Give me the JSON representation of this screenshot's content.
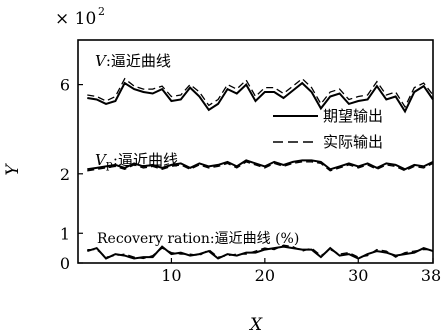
{
  "chart_data": {
    "type": "line",
    "scale_label": "× 10",
    "scale_exponent": "2",
    "xlabel": "X",
    "ylabel": "Y",
    "xlim": [
      0,
      38
    ],
    "ylim": [
      0,
      7.5
    ],
    "x_ticks": [
      10,
      20,
      30,
      38
    ],
    "y_ticks": [
      0,
      1,
      2,
      6
    ],
    "y_tick_labels": [
      "0",
      "1",
      "2",
      "6"
    ],
    "y_tick_positions": [
      0,
      1,
      3,
      6
    ],
    "legend": {
      "solid_label": "期望输出",
      "dashed_label": "实际输出",
      "placement": "right-middle"
    },
    "panels": [
      {
        "label_var": "V",
        "label_text": ":逼近曲线",
        "x": [
          1,
          2,
          3,
          4,
          5,
          6,
          7,
          8,
          9,
          10,
          11,
          12,
          13,
          14,
          15,
          16,
          17,
          18,
          19,
          20,
          21,
          22,
          23,
          24,
          25,
          26,
          27,
          28,
          29,
          30,
          31,
          32,
          33,
          34,
          35,
          36,
          37,
          38
        ],
        "series": [
          {
            "style": "solid",
            "values": [
              5.55,
              5.5,
              5.35,
              5.45,
              6.05,
              5.85,
              5.75,
              5.7,
              5.85,
              5.45,
              5.5,
              5.9,
              5.6,
              5.15,
              5.35,
              5.85,
              5.7,
              6.0,
              5.45,
              5.75,
              5.75,
              5.55,
              5.8,
              6.05,
              5.75,
              5.2,
              5.6,
              5.7,
              5.35,
              5.45,
              5.5,
              5.95,
              5.5,
              5.6,
              5.1,
              5.75,
              5.95,
              5.5
            ]
          },
          {
            "style": "dashed",
            "values": [
              5.65,
              5.6,
              5.45,
              5.6,
              6.2,
              5.95,
              5.85,
              5.85,
              5.95,
              5.6,
              5.65,
              6.0,
              5.75,
              5.3,
              5.5,
              6.0,
              5.85,
              6.15,
              5.6,
              5.9,
              5.9,
              5.7,
              5.95,
              6.2,
              5.9,
              5.35,
              5.75,
              5.85,
              5.5,
              5.6,
              5.65,
              6.1,
              5.65,
              5.75,
              5.25,
              5.9,
              6.05,
              5.65
            ]
          }
        ]
      },
      {
        "label_var": "V",
        "label_sub": "p",
        "label_text": ":逼近曲线",
        "x": [
          1,
          2,
          3,
          4,
          5,
          6,
          7,
          8,
          9,
          10,
          11,
          12,
          13,
          14,
          15,
          16,
          17,
          18,
          19,
          20,
          21,
          22,
          23,
          24,
          25,
          26,
          27,
          28,
          29,
          30,
          31,
          32,
          33,
          34,
          35,
          36,
          37,
          38
        ],
        "series": [
          {
            "style": "solid",
            "values": [
              3.15,
              3.2,
              3.25,
              3.3,
              3.2,
              3.35,
              3.25,
              3.3,
              3.2,
              3.3,
              3.35,
              3.2,
              3.35,
              3.25,
              3.3,
              3.4,
              3.25,
              3.45,
              3.35,
              3.25,
              3.4,
              3.3,
              3.4,
              3.45,
              3.45,
              3.4,
              3.15,
              3.25,
              3.35,
              3.25,
              3.35,
              3.2,
              3.35,
              3.3,
              3.15,
              3.3,
              3.25,
              3.4
            ]
          },
          {
            "style": "dashed",
            "values": [
              3.1,
              3.15,
              3.2,
              3.25,
              3.15,
              3.3,
              3.2,
              3.25,
              3.15,
              3.25,
              3.3,
              3.15,
              3.3,
              3.2,
              3.25,
              3.35,
              3.2,
              3.4,
              3.3,
              3.2,
              3.35,
              3.25,
              3.35,
              3.4,
              3.4,
              3.35,
              3.1,
              3.2,
              3.3,
              3.2,
              3.3,
              3.15,
              3.3,
              3.25,
              3.1,
              3.25,
              3.2,
              3.35
            ]
          }
        ]
      },
      {
        "label_text": "Recovery ration:逼近曲线 (%)",
        "x": [
          1,
          2,
          3,
          4,
          5,
          6,
          7,
          8,
          9,
          10,
          11,
          12,
          13,
          14,
          15,
          16,
          17,
          18,
          19,
          20,
          21,
          22,
          23,
          24,
          25,
          26,
          27,
          28,
          29,
          30,
          31,
          32,
          33,
          34,
          35,
          36,
          37,
          38
        ],
        "series": [
          {
            "style": "solid",
            "values": [
              0.4,
              0.5,
              0.15,
              0.3,
              0.25,
              0.15,
              0.2,
              0.2,
              0.55,
              0.3,
              0.35,
              0.25,
              0.3,
              0.4,
              0.15,
              0.3,
              0.25,
              0.35,
              0.35,
              0.45,
              0.5,
              0.55,
              0.5,
              0.45,
              0.45,
              0.2,
              0.5,
              0.25,
              0.3,
              0.15,
              0.3,
              0.4,
              0.35,
              0.25,
              0.3,
              0.35,
              0.5,
              0.4
            ]
          },
          {
            "style": "dashed",
            "values": [
              0.45,
              0.45,
              0.2,
              0.25,
              0.3,
              0.2,
              0.15,
              0.25,
              0.5,
              0.35,
              0.3,
              0.3,
              0.25,
              0.45,
              0.2,
              0.25,
              0.3,
              0.3,
              0.4,
              0.5,
              0.45,
              0.6,
              0.55,
              0.4,
              0.5,
              0.25,
              0.45,
              0.3,
              0.35,
              0.2,
              0.25,
              0.45,
              0.4,
              0.2,
              0.35,
              0.4,
              0.45,
              0.45
            ]
          }
        ]
      }
    ]
  }
}
